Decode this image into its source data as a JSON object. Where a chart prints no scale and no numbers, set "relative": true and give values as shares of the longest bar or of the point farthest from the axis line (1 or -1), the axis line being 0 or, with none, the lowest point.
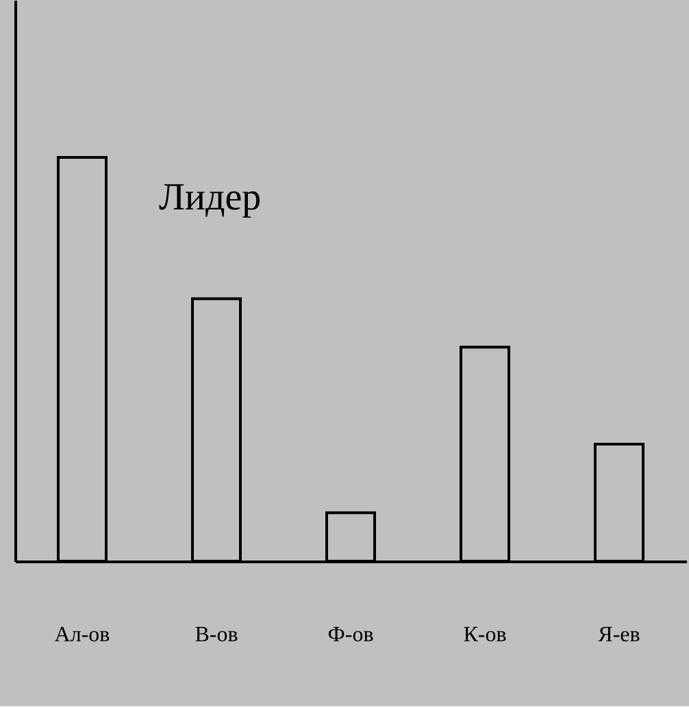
{
  "chart_data": {
    "type": "bar",
    "relative": true,
    "categories": [
      "Ал-ов",
      "В-ов",
      "Ф-ов",
      "К-ов",
      "Я-ев"
    ],
    "values": [
      1,
      0.65,
      0.12,
      0.53,
      0.29
    ],
    "color": "#c0c0c0",
    "annotations": [
      "Лидер"
    ],
    "grid": false
  }
}
